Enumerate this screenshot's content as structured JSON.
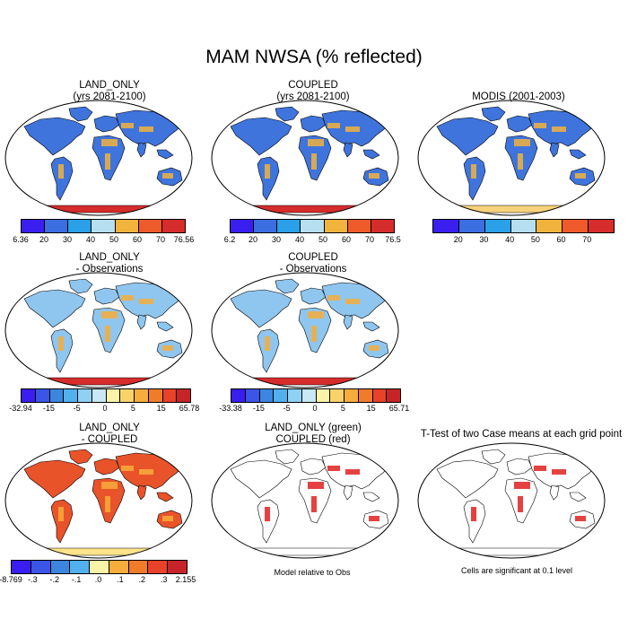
{
  "title": "MAM NWSA (% reflected)",
  "panels": {
    "p1": {
      "line1": "LAND_ONLY",
      "line2": "(yrs 2081-2100)"
    },
    "p2": {
      "line1": "COUPLED",
      "line2": "(yrs 2081-2100)"
    },
    "p3": {
      "line1": "MODIS (2001-2003)",
      "line2": ""
    },
    "p4": {
      "line1": "LAND_ONLY",
      "line2": "- Observations"
    },
    "p5": {
      "line1": "COUPLED",
      "line2": "- Observations"
    },
    "p7": {
      "line1": "LAND_ONLY",
      "line2": "- COUPLED"
    },
    "p8": {
      "line1": "LAND_ONLY (green)",
      "line2": "COUPLED (red)"
    },
    "p9": {
      "line1": "T-Test of two Case means at each grid point",
      "line2": ""
    }
  },
  "notes": {
    "p8": "Model relative to Obs",
    "p9": "Cells are significant at 0.1 level"
  },
  "colorbars": {
    "abs_colors": [
      "#3a1ef0",
      "#3b6ee0",
      "#2aa0e8",
      "#b6e0f2",
      "#f2b33d",
      "#ef5a2a",
      "#d62c2c"
    ],
    "diff_colors": [
      "#3a1ef0",
      "#3b55e6",
      "#3d86e0",
      "#52b0ee",
      "#8fd0f3",
      "#c7e8f4",
      "#fbf3a8",
      "#f9d36a",
      "#f6ad3b",
      "#f07c2a",
      "#e9422a",
      "#c62428"
    ],
    "ttest_colors": [
      "#3a1ef0",
      "#3b55e6",
      "#3d86e0",
      "#52b0ee",
      "#fbf3a8",
      "#f6ad3b",
      "#f07c2a",
      "#e9422a",
      "#c62428"
    ],
    "p1_ticks": [
      "6.36",
      "20",
      "30",
      "40",
      "50",
      "60",
      "70",
      "76.56"
    ],
    "p2_ticks": [
      "6.2",
      "20",
      "30",
      "40",
      "50",
      "60",
      "70",
      "76.5"
    ],
    "p3_ticks": [
      "20",
      "30",
      "40",
      "50",
      "60",
      "70"
    ],
    "p4_ticks": [
      "-32.94",
      "-15",
      "-5",
      "0",
      "5",
      "15",
      "65.78"
    ],
    "p5_ticks": [
      "-33.38",
      "-15",
      "-5",
      "0",
      "5",
      "15",
      "65.71"
    ],
    "p7_ticks": [
      "-8.769",
      "-.3",
      "-.2",
      "-.1",
      ".0",
      ".1",
      ".2",
      ".3",
      "2.155"
    ]
  },
  "map_fills": {
    "p1": {
      "land": "#3f74dc",
      "accent": "#f2b33d",
      "antarctica": "#d62c2c"
    },
    "p2": {
      "land": "#3f74dc",
      "accent": "#f2b33d",
      "antarctica": "#d62c2c"
    },
    "p3": {
      "land": "#3f74dc",
      "accent": "#f2b33d",
      "antarctica": "#f7d27a"
    },
    "p4": {
      "land": "#8fc6ef",
      "accent": "#f6ad3b",
      "antarctica": "#d62c2c"
    },
    "p5": {
      "land": "#8fc6ef",
      "accent": "#f6ad3b",
      "antarctica": "#d62c2c"
    },
    "p7": {
      "land": "#e9532a",
      "accent": "#f6ad3b",
      "antarctica": "#fbe38a"
    },
    "p8": {
      "land": "#ffffff",
      "accent": "#e02020",
      "antarctica": "#ffffff"
    },
    "p9": {
      "land": "#ffffff",
      "accent": "#e02020",
      "antarctica": "#ffffff"
    }
  }
}
